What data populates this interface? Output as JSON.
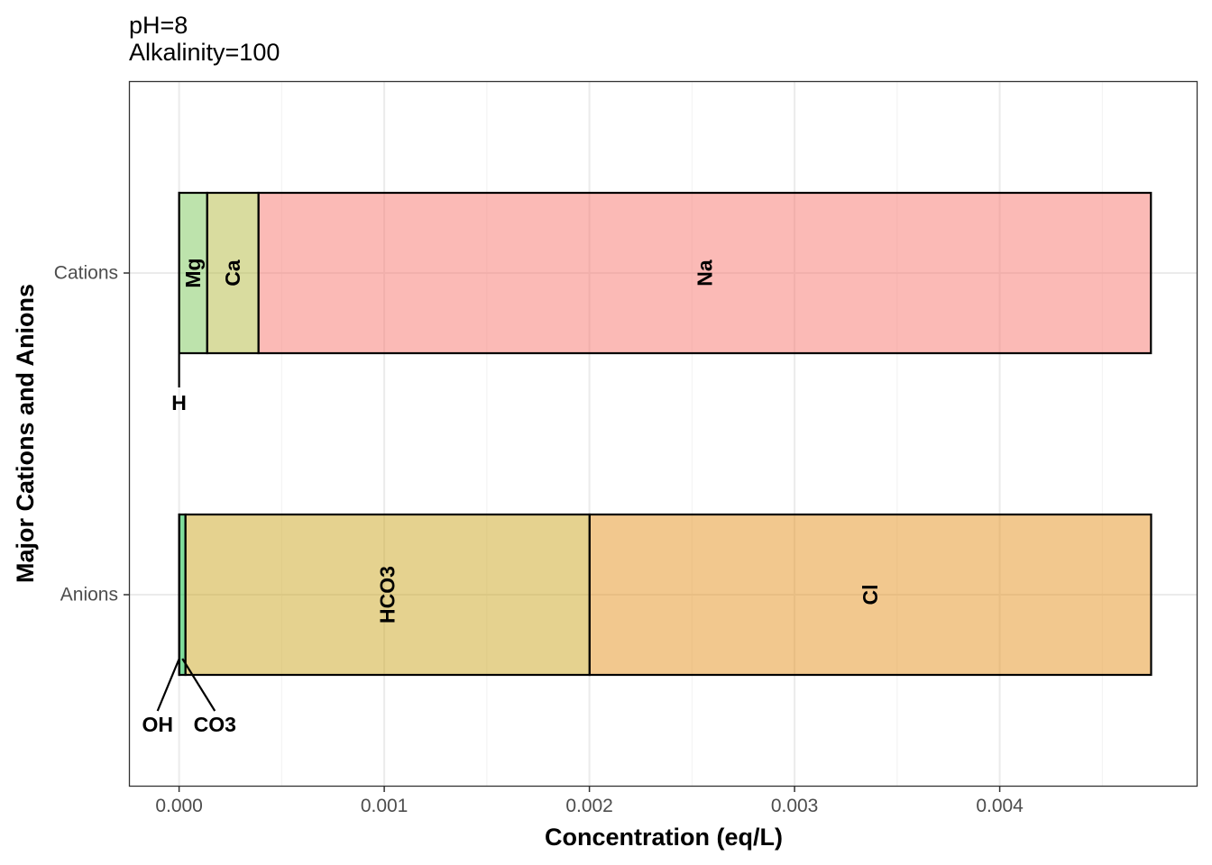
{
  "chart_data": {
    "type": "bar",
    "orientation": "horizontal",
    "stacked": true,
    "title_lines": [
      "pH=8",
      "Alkalinity=100"
    ],
    "xlabel": "Concentration (eq/L)",
    "ylabel": "Major Cations and Anions",
    "xlim": [
      -0.00024,
      0.00496
    ],
    "x_ticks": [
      0.0,
      0.001,
      0.002,
      0.003,
      0.004
    ],
    "x_tick_labels": [
      "0.000",
      "0.001",
      "0.002",
      "0.003",
      "0.004"
    ],
    "categories": [
      "Cations",
      "Anions"
    ],
    "grid": true,
    "legend": "none",
    "bars": [
      {
        "category": "Cations",
        "segments": [
          {
            "ion": "H",
            "value": 1e-08,
            "color": "#F8766D",
            "label_outside": true
          },
          {
            "ion": "Mg",
            "value": 0.000137,
            "color": "#7CC75A",
            "label_outside": false
          },
          {
            "ion": "Ca",
            "value": 0.00025,
            "color": "#B3B940",
            "label_outside": false
          },
          {
            "ion": "Na",
            "value": 0.00435,
            "color": "#F8766D",
            "label_outside": false
          }
        ]
      },
      {
        "category": "Anions",
        "segments": [
          {
            "ion": "OH",
            "value": 1e-06,
            "color": "#00BA38",
            "label_outside": true
          },
          {
            "ion": "CO3",
            "value": 3e-05,
            "color": "#00BA38",
            "label_outside": true
          },
          {
            "ion": "HCO3",
            "value": 0.00197,
            "color": "#CBA61F",
            "label_outside": false
          },
          {
            "ion": "Cl",
            "value": 0.002737,
            "color": "#E6921D",
            "label_outside": false
          }
        ]
      }
    ]
  }
}
